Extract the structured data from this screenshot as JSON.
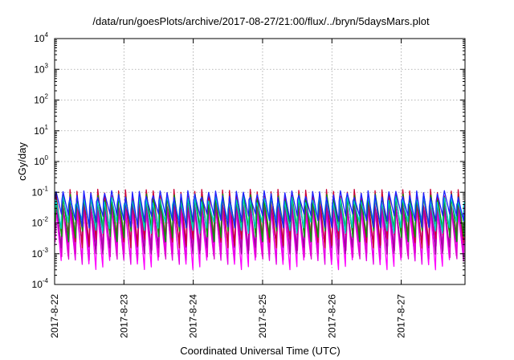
{
  "chart_data": {
    "type": "line",
    "title": "/data/run/goesPlots/archive/2017-08-27/21:00/flux/../bryn/5daysMars.plot",
    "xlabel": "Coordinated Universal Time (UTC)",
    "ylabel": "cGy/day",
    "yscale": "log",
    "ylim": [
      0.0001,
      10000
    ],
    "xlim": [
      0,
      5.92
    ],
    "x_ticks": [
      {
        "value": 0,
        "label": "2017-8-22"
      },
      {
        "value": 1,
        "label": "2017-8-23"
      },
      {
        "value": 2,
        "label": "2017-8-24"
      },
      {
        "value": 3,
        "label": "2017-8-25"
      },
      {
        "value": 4,
        "label": "2017-8-26"
      },
      {
        "value": 5,
        "label": "2017-8-27"
      }
    ],
    "y_ticks": [
      {
        "value": 0.0001,
        "base": "10",
        "exp": "-4"
      },
      {
        "value": 0.001,
        "base": "10",
        "exp": "-3"
      },
      {
        "value": 0.01,
        "base": "10",
        "exp": "-2"
      },
      {
        "value": 0.1,
        "base": "10",
        "exp": "-1"
      },
      {
        "value": 1,
        "base": "10",
        "exp": "0"
      },
      {
        "value": 10,
        "base": "10",
        "exp": "1"
      },
      {
        "value": 100,
        "base": "10",
        "exp": "2"
      },
      {
        "value": 1000,
        "base": "10",
        "exp": "3"
      },
      {
        "value": 10000,
        "base": "10",
        "exp": "4"
      }
    ],
    "grid": true,
    "sawtooth_period_days": 0.1,
    "series": [
      {
        "color": "#ff00ff",
        "peak": 0.03,
        "trough": 0.0006
      },
      {
        "color": "#e600e6",
        "peak": 0.035,
        "trough": 0.0009
      },
      {
        "color": "#dd00cc",
        "peak": 0.04,
        "trough": 0.0013
      },
      {
        "color": "#a000a0",
        "peak": 0.05,
        "trough": 0.0018
      },
      {
        "color": "#cc0033",
        "peak": 0.1,
        "trough": 0.003
      },
      {
        "color": "#00a000",
        "peak": 0.07,
        "trough": 0.005
      },
      {
        "color": "#00cccc",
        "peak": 0.06,
        "trough": 0.009
      },
      {
        "color": "#2020ff",
        "peak": 0.09,
        "trough": 0.013
      }
    ]
  }
}
